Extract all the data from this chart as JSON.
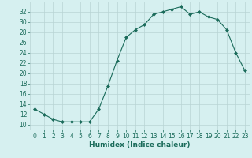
{
  "x": [
    0,
    1,
    2,
    3,
    4,
    5,
    6,
    7,
    8,
    9,
    10,
    11,
    12,
    13,
    14,
    15,
    16,
    17,
    18,
    19,
    20,
    21,
    22,
    23
  ],
  "y": [
    13,
    12,
    11,
    10.5,
    10.5,
    10.5,
    10.5,
    13,
    17.5,
    22.5,
    27,
    28.5,
    29.5,
    31.5,
    32,
    32.5,
    33,
    31.5,
    32,
    31,
    30.5,
    28.5,
    24,
    20.5
  ],
  "line_color": "#1a6b5a",
  "marker": "D",
  "marker_size": 2,
  "bg_color": "#d6f0f0",
  "grid_color": "#b8d4d4",
  "xlabel": "Humidex (Indice chaleur)",
  "xlim": [
    -0.5,
    23.5
  ],
  "ylim": [
    9,
    34
  ],
  "yticks": [
    10,
    12,
    14,
    16,
    18,
    20,
    22,
    24,
    26,
    28,
    30,
    32
  ],
  "xticks": [
    0,
    1,
    2,
    3,
    4,
    5,
    6,
    7,
    8,
    9,
    10,
    11,
    12,
    13,
    14,
    15,
    16,
    17,
    18,
    19,
    20,
    21,
    22,
    23
  ],
  "tick_label_size": 5.5,
  "xlabel_size": 6.5
}
